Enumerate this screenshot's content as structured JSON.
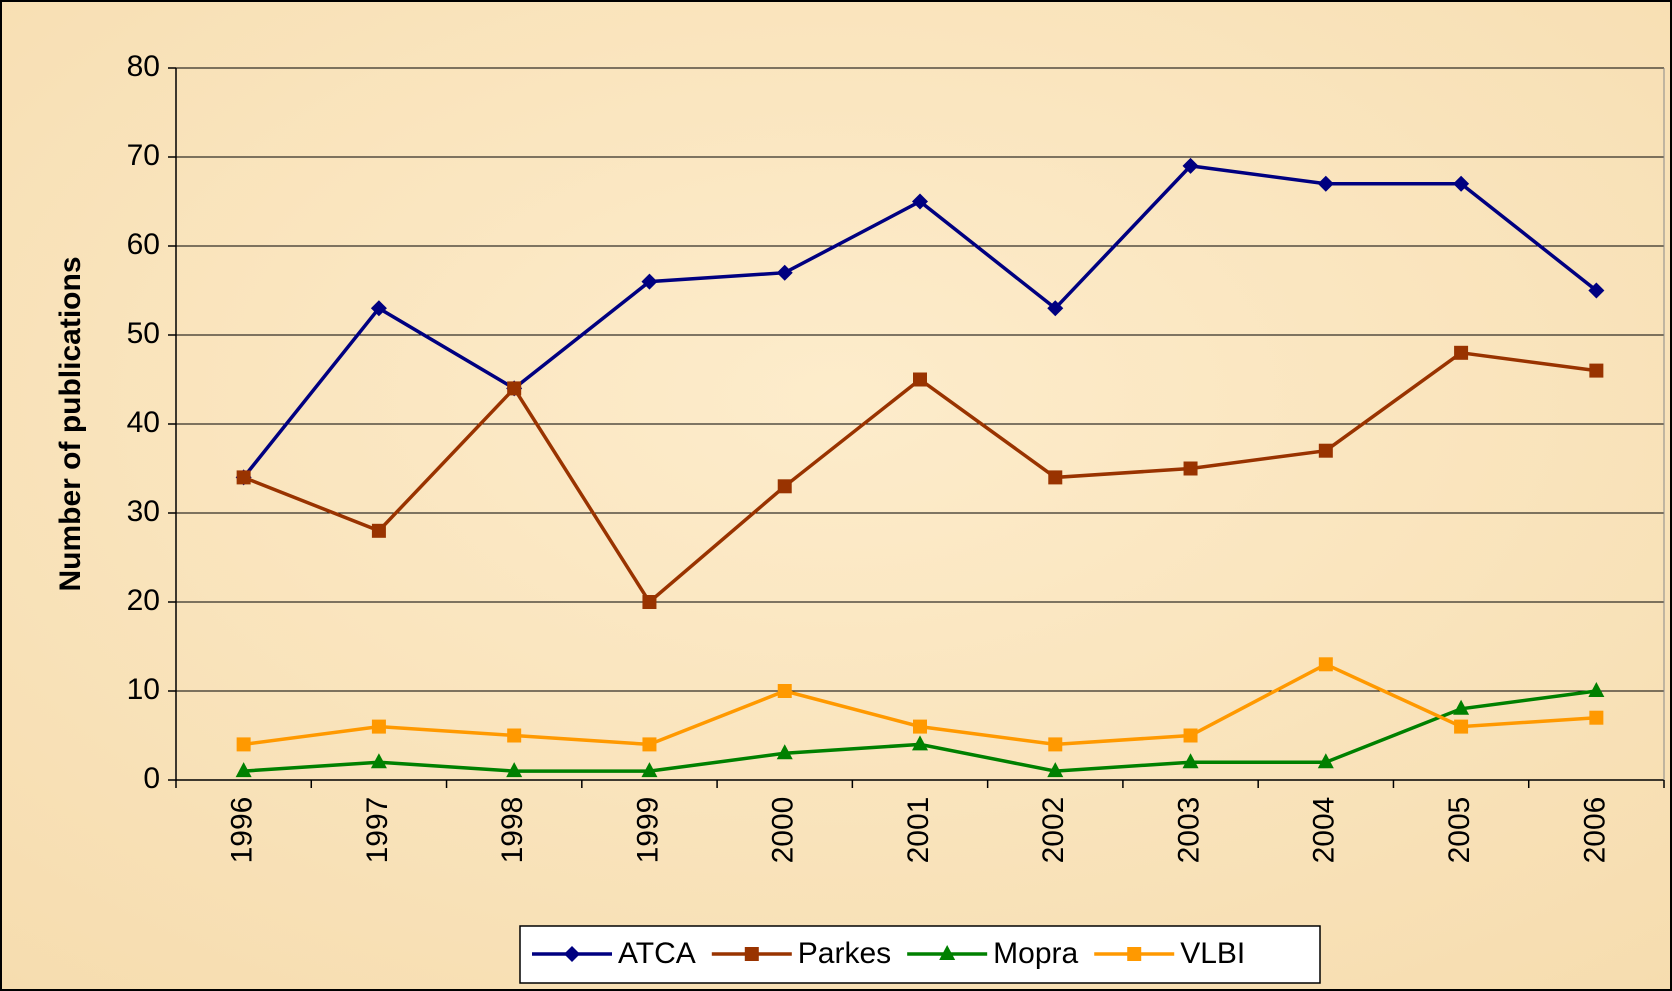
{
  "chart_data": {
    "type": "line",
    "y_label": "Number of publications",
    "categories": [
      "1996",
      "1997",
      "1998",
      "1999",
      "2000",
      "2001",
      "2002",
      "2003",
      "2004",
      "2005",
      "2006"
    ],
    "series": [
      {
        "name": "ATCA",
        "color": "#000080",
        "marker": "diamond",
        "values": [
          34,
          53,
          44,
          56,
          57,
          65,
          53,
          69,
          67,
          67,
          55
        ]
      },
      {
        "name": "Parkes",
        "color": "#993300",
        "marker": "square",
        "values": [
          34,
          28,
          44,
          20,
          33,
          45,
          34,
          35,
          37,
          48,
          46
        ]
      },
      {
        "name": "Mopra",
        "color": "#008000",
        "marker": "triangle",
        "values": [
          1,
          2,
          1,
          1,
          3,
          4,
          1,
          2,
          2,
          8,
          10
        ]
      },
      {
        "name": "VLBI",
        "color": "#ff9900",
        "marker": "square",
        "values": [
          4,
          6,
          5,
          4,
          10,
          6,
          4,
          5,
          13,
          6,
          7
        ]
      }
    ],
    "ylim": [
      0,
      80
    ],
    "yticks": [
      0,
      10,
      20,
      30,
      40,
      50,
      60,
      70,
      80
    ],
    "grid": true,
    "legend": "bottom"
  }
}
